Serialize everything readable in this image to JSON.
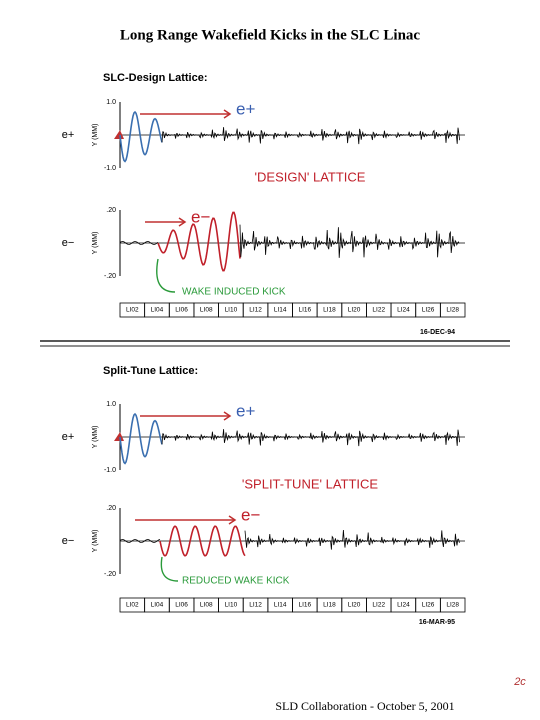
{
  "title": "Long Range Wakefield Kicks in the SLC Linac",
  "sections": [
    {
      "heading": "SLC-Design Lattice:",
      "plots": [
        {
          "side_label": "e+",
          "y_label": "Y (MM)",
          "yticks": [
            "1.0",
            "-1.0"
          ],
          "annotation": "e+"
        },
        {
          "side_label": "e−",
          "y_label": "Y (MM)",
          "yticks": [
            ".20",
            "-.20"
          ],
          "annotation": "e−"
        }
      ],
      "lattice_note": "'DESIGN' LATTICE",
      "kick_note": "WAKE INDUCED KICK",
      "x_labels": [
        "LI02",
        "LI04",
        "LI06",
        "LI08",
        "LI10",
        "LI12",
        "LI14",
        "LI16",
        "LI18",
        "LI20",
        "LI22",
        "LI24",
        "LI26",
        "LI28"
      ],
      "date": "16-DEC-94"
    },
    {
      "heading": "Split-Tune Lattice:",
      "plots": [
        {
          "side_label": "e+",
          "y_label": "Y (MM)",
          "yticks": [
            "1.0",
            "-1.0"
          ],
          "annotation": "e+"
        },
        {
          "side_label": "e−",
          "y_label": "Y (MM)",
          "yticks": [
            ".20",
            "-.20"
          ],
          "annotation": "e−"
        }
      ],
      "lattice_note": "'SPLIT-TUNE' LATTICE",
      "kick_note": "REDUCED WAKE KICK",
      "x_labels": [
        "LI02",
        "LI04",
        "LI06",
        "LI08",
        "LI10",
        "LI12",
        "LI14",
        "LI16",
        "LI18",
        "LI20",
        "LI22",
        "LI24",
        "LI26",
        "LI28"
      ],
      "date": "16-MAR-95"
    }
  ],
  "footer": "SLD Collaboration - October 5, 2001",
  "page_mark": "2c"
}
